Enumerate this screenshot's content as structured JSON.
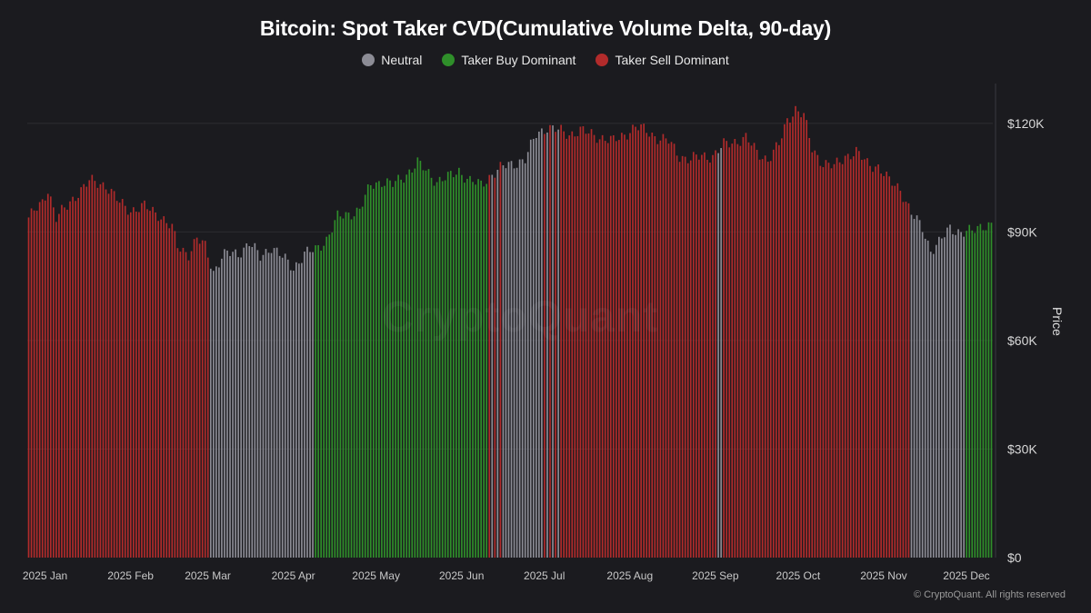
{
  "chart_data": {
    "type": "bar",
    "title": "Bitcoin: Spot Taker CVD(Cumulative Volume Delta, 90-day)",
    "ylabel": "Price",
    "xlabel": "",
    "ylim": [
      0,
      131000
    ],
    "yticks": [
      0,
      30000,
      60000,
      90000,
      120000
    ],
    "ytick_labels": [
      "$0",
      "$30K",
      "$60K",
      "$90K",
      "$120K"
    ],
    "xtick_labels": [
      "2025 Jan",
      "2025 Feb",
      "2025 Mar",
      "2025 Apr",
      "2025 May",
      "2025 Jun",
      "2025 Jul",
      "2025 Aug",
      "2025 Sep",
      "2025 Oct",
      "2025 Nov",
      "2025 Dec"
    ],
    "xtick_day_index": [
      0,
      31,
      59,
      90,
      120,
      151,
      181,
      212,
      243,
      273,
      304,
      334
    ],
    "legend": [
      {
        "key": "neutral",
        "label": "Neutral",
        "color": "#8c8c95"
      },
      {
        "key": "buy",
        "label": "Taker Buy Dominant",
        "color": "#2f8f2a"
      },
      {
        "key": "sell",
        "label": "Taker Sell Dominant",
        "color": "#b22b2b"
      }
    ],
    "price_anchors": [
      [
        0,
        94000
      ],
      [
        5,
        98000
      ],
      [
        7,
        102000
      ],
      [
        10,
        94000
      ],
      [
        14,
        97000
      ],
      [
        18,
        101000
      ],
      [
        22,
        104000
      ],
      [
        28,
        103000
      ],
      [
        33,
        98000
      ],
      [
        37,
        96000
      ],
      [
        42,
        97000
      ],
      [
        47,
        95000
      ],
      [
        52,
        91000
      ],
      [
        54,
        86000
      ],
      [
        58,
        84000
      ],
      [
        61,
        88000
      ],
      [
        64,
        86000
      ],
      [
        67,
        79000
      ],
      [
        70,
        83000
      ],
      [
        72,
        84000
      ],
      [
        76,
        84000
      ],
      [
        80,
        87000
      ],
      [
        84,
        83000
      ],
      [
        88,
        86000
      ],
      [
        92,
        83000
      ],
      [
        96,
        80000
      ],
      [
        100,
        84000
      ],
      [
        104,
        85000
      ],
      [
        108,
        88000
      ],
      [
        112,
        94000
      ],
      [
        116,
        95000
      ],
      [
        120,
        96000
      ],
      [
        124,
        103000
      ],
      [
        128,
        104000
      ],
      [
        132,
        103000
      ],
      [
        137,
        106000
      ],
      [
        141,
        109000
      ],
      [
        144,
        107000
      ],
      [
        148,
        104000
      ],
      [
        152,
        105000
      ],
      [
        156,
        107000
      ],
      [
        160,
        104000
      ],
      [
        164,
        103000
      ],
      [
        168,
        106000
      ],
      [
        172,
        108000
      ],
      [
        176,
        109000
      ],
      [
        180,
        110000
      ],
      [
        184,
        117000
      ],
      [
        188,
        119000
      ],
      [
        192,
        118000
      ],
      [
        196,
        117000
      ],
      [
        200,
        118000
      ],
      [
        204,
        117000
      ],
      [
        208,
        116000
      ],
      [
        212,
        115000
      ],
      [
        216,
        117000
      ],
      [
        220,
        119000
      ],
      [
        224,
        118000
      ],
      [
        228,
        116000
      ],
      [
        232,
        115000
      ],
      [
        236,
        111000
      ],
      [
        240,
        110000
      ],
      [
        244,
        111000
      ],
      [
        248,
        111000
      ],
      [
        252,
        114000
      ],
      [
        256,
        115000
      ],
      [
        260,
        116000
      ],
      [
        264,
        112000
      ],
      [
        268,
        110000
      ],
      [
        272,
        114000
      ],
      [
        275,
        121000
      ],
      [
        278,
        124000
      ],
      [
        281,
        122000
      ],
      [
        284,
        113000
      ],
      [
        288,
        109000
      ],
      [
        292,
        108000
      ],
      [
        296,
        111000
      ],
      [
        300,
        112000
      ],
      [
        304,
        109000
      ],
      [
        308,
        108000
      ],
      [
        312,
        104000
      ],
      [
        316,
        102000
      ],
      [
        320,
        95000
      ],
      [
        324,
        91000
      ],
      [
        327,
        85000
      ],
      [
        330,
        87000
      ],
      [
        334,
        91000
      ],
      [
        338,
        90000
      ],
      [
        342,
        90000
      ],
      [
        346,
        92000
      ],
      [
        349,
        92000
      ]
    ],
    "color_segments": [
      {
        "start": 0,
        "end": 65,
        "cat": "sell"
      },
      {
        "start": 66,
        "end": 103,
        "cat": "neutral"
      },
      {
        "start": 104,
        "end": 166,
        "cat": "buy"
      },
      {
        "start": 167,
        "end": 172,
        "cat": "mixed"
      },
      {
        "start": 173,
        "end": 186,
        "cat": "neutral"
      },
      {
        "start": 187,
        "end": 193,
        "cat": "mixed"
      },
      {
        "start": 194,
        "end": 249,
        "cat": "sell"
      },
      {
        "start": 250,
        "end": 251,
        "cat": "neutral"
      },
      {
        "start": 252,
        "end": 319,
        "cat": "sell"
      },
      {
        "start": 320,
        "end": 339,
        "cat": "neutral"
      },
      {
        "start": 340,
        "end": 349,
        "cat": "buy"
      }
    ]
  },
  "watermark": "CryptoQuant",
  "copyright": "© CryptoQuant. All rights reserved"
}
